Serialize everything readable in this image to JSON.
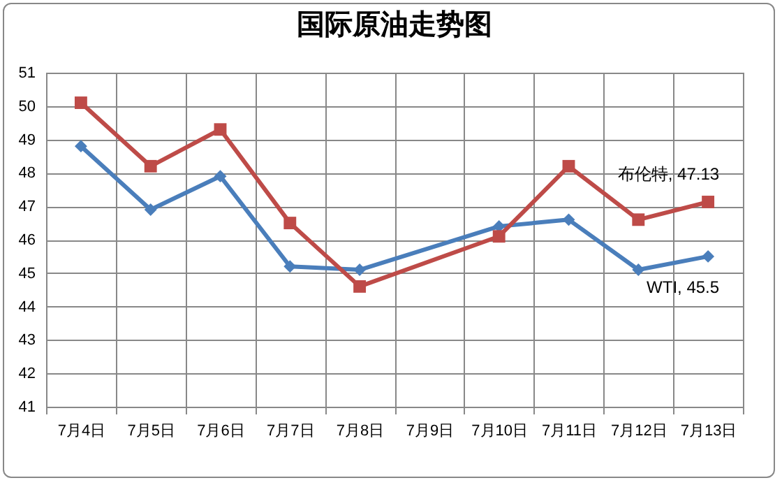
{
  "chart_data": {
    "type": "line",
    "title": "国际原油走势图",
    "categories": [
      "7月4日",
      "7月5日",
      "7月6日",
      "7月7日",
      "7月8日",
      "7月9日",
      "7月10日",
      "7月11日",
      "7月12日",
      "7月13日"
    ],
    "series": [
      {
        "color": "#4a7ebb",
        "marker": "diamond",
        "values": [
          48.8,
          46.9,
          47.9,
          45.2,
          45.1,
          null,
          46.4,
          46.6,
          45.1,
          45.5
        ]
      },
      {
        "color": "#be4b48",
        "marker": "square",
        "values": [
          50.1,
          48.2,
          49.3,
          46.5,
          44.6,
          null,
          46.1,
          48.2,
          46.6,
          47.13
        ]
      }
    ],
    "annotations": [
      {
        "text": "WTI, 45.5",
        "x": "7月13日",
        "y": 45.5
      },
      {
        "text": "布伦特, 47.13",
        "x": "7月13日",
        "y": 47.13
      }
    ],
    "ylim": [
      41,
      51
    ],
    "yticks": [
      41,
      42,
      43,
      44,
      45,
      46,
      47,
      48,
      49,
      50,
      51
    ],
    "grid": true,
    "legend": false,
    "line_style": "solid"
  }
}
